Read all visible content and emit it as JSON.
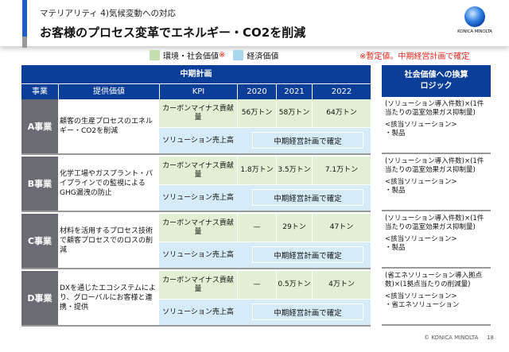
{
  "header": {
    "subtitle": "マテリアリティ 4)気候変動への対応",
    "title": "お客様のプロセス変革でエネルギー・CO2を削減",
    "logo_text": "KONICA MINOLTA"
  },
  "legend": {
    "env": "環境・社会価値",
    "env_mark": "※",
    "econ": "経済価値",
    "note": "※暫定値。中期経営計画で確定",
    "colors": {
      "env": "#c6dfb0",
      "econ": "#a8d8f0",
      "note": "#e8241a"
    }
  },
  "table": {
    "plan_header": "中期計画",
    "columns": [
      "事業",
      "提供価値",
      "KPI",
      "2020",
      "2021",
      "2022"
    ],
    "rows": [
      {
        "business": "A事業",
        "value": "顧客の生産プロセスのエネルギー・CO2を削減",
        "kpi1": "カーボンマイナス貢献量",
        "y2020": "56万トン",
        "y2021": "58万トン",
        "y2022": "64万トン",
        "kpi2": "ソリューション売上高",
        "kpi2_value": "中期経営計画で確定"
      },
      {
        "business": "B事業",
        "value": "化学工場やガスプラント・パイプラインでの監視によるGHG漏洩の防止",
        "kpi1": "カーボンマイナス貢献量",
        "y2020": "1.8万トン",
        "y2021": "3.5万トン",
        "y2022": "7.1万トン",
        "kpi2": "ソリューション売上高",
        "kpi2_value": "中期経営計画で確定"
      },
      {
        "business": "C事業",
        "value": "材料を活用するプロセス技術で顧客プロセスでのロスの削減",
        "kpi1": "カーボンマイナス貢献量",
        "y2020": "—",
        "y2021": "29トン",
        "y2022": "47トン",
        "kpi2": "ソリューション売上高",
        "kpi2_value": "中期経営計画で確定"
      },
      {
        "business": "D事業",
        "value": "DXを通じたエコシステムにより、グローバルにお客様と連携・提供",
        "kpi1": "カーボンマイナス貢献量",
        "y2020": "—",
        "y2021": "0.5万トン",
        "y2022": "4万トン",
        "kpi2": "ソリューション売上高",
        "kpi2_value": "中期経営計画で確定"
      }
    ]
  },
  "logic": {
    "header": "社会価値への換算ロジック",
    "items": [
      {
        "formula": "(ソリューション導入件数)×(1件当たりの温室効果ガス抑制量)",
        "solutions": "<該当ソリューション>",
        "item": "・製品"
      },
      {
        "formula": "(ソリューション導入件数)×(1件当たりの温室効果ガス抑制量)",
        "solutions": "<該当ソリューション>",
        "item": "・製品"
      },
      {
        "formula": "(ソリューション導入件数)×(1件当たりの温室効果ガス抑制量)",
        "solutions": "<該当ソリューション>",
        "item": "・製品"
      },
      {
        "formula": "(省エネソリューション導入拠点数)×(1拠点当たりの削減量)",
        "solutions": "<該当ソリューション>",
        "item": "・省エネソリューション"
      }
    ]
  },
  "footer": {
    "copyright": "© KONICA MINOLTA",
    "page": "18"
  }
}
